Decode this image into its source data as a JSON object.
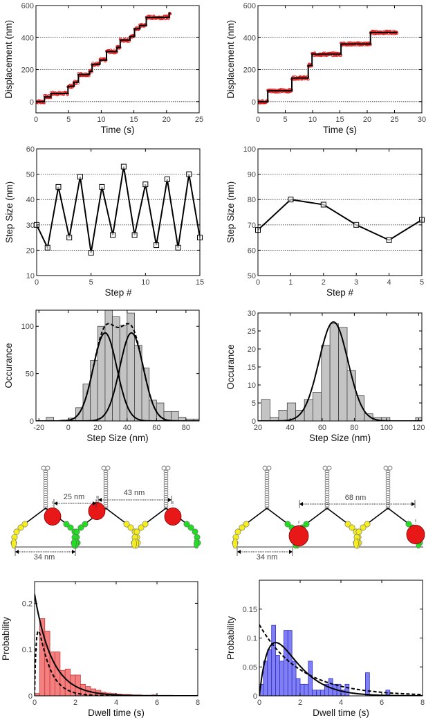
{
  "chart_data": [
    {
      "id": "A1",
      "type": "line",
      "xlabel": "Time (s)",
      "ylabel": "Displacement (nm)",
      "xlim": [
        0,
        25
      ],
      "ylim": [
        -70,
        600
      ],
      "xticks": [
        0,
        5,
        10,
        15,
        20,
        25
      ],
      "yticks": [
        0,
        200,
        400,
        600
      ],
      "grid": true,
      "series": [
        {
          "type": "step",
          "name": "trace",
          "color": "#e02020",
          "times": [
            0,
            1.3,
            2.3,
            4.9,
            5.8,
            6.5,
            8.2,
            8.6,
            9.8,
            10.8,
            12.4,
            12.9,
            14.4,
            15.1,
            15.9,
            16.9,
            20.4
          ],
          "levels": [
            0,
            30,
            51,
            96,
            121,
            170,
            189,
            234,
            260,
            313,
            339,
            385,
            407,
            455,
            476,
            526,
            551
          ],
          "t_end": 20.6
        }
      ]
    },
    {
      "id": "A2",
      "type": "line",
      "xlabel": "Time (s)",
      "ylabel": "Displacement (nm)",
      "xlim": [
        0,
        30
      ],
      "ylim": [
        -70,
        600
      ],
      "xticks": [
        0,
        5,
        10,
        15,
        20,
        25,
        30
      ],
      "yticks": [
        0,
        200,
        400,
        600
      ],
      "grid": true,
      "series": [
        {
          "type": "step",
          "name": "trace",
          "color": "#e02020",
          "times": [
            0,
            1.8,
            6.2,
            9.2,
            9.9,
            15.2,
            20.6
          ],
          "levels": [
            0,
            68,
            148,
            226,
            296,
            360,
            432
          ],
          "t_end": 25.5
        }
      ]
    },
    {
      "id": "B1",
      "type": "line",
      "xlabel": "Step #",
      "ylabel": "Step Size (nm)",
      "xlim": [
        0,
        15
      ],
      "ylim": [
        10,
        60
      ],
      "xticks": [
        0,
        5,
        10,
        15
      ],
      "yticks": [
        10,
        20,
        30,
        40,
        50,
        60
      ],
      "grid": true,
      "series": [
        {
          "type": "line_markers",
          "name": "step sizes",
          "x": [
            0,
            1,
            2,
            3,
            4,
            5,
            6,
            7,
            8,
            9,
            10,
            11,
            12,
            13,
            14,
            15
          ],
          "y": [
            30,
            21,
            45,
            25,
            49,
            19,
            45,
            26,
            53,
            26,
            46,
            22,
            48,
            21,
            50,
            25
          ]
        }
      ]
    },
    {
      "id": "B2",
      "type": "line",
      "xlabel": "Step #",
      "ylabel": "Step Size (nm)",
      "xlim": [
        0,
        5
      ],
      "ylim": [
        50,
        100
      ],
      "xticks": [
        0,
        1,
        2,
        3,
        4,
        5
      ],
      "yticks": [
        50,
        60,
        70,
        80,
        90,
        100
      ],
      "grid": true,
      "series": [
        {
          "type": "line_markers",
          "name": "step sizes",
          "x": [
            0,
            1,
            2,
            3,
            4,
            5
          ],
          "y": [
            68,
            80,
            78,
            70,
            64,
            72
          ]
        }
      ]
    },
    {
      "id": "C1",
      "type": "bar",
      "xlabel": "Step Size (nm)",
      "ylabel": "Occurance",
      "xlim": [
        -22,
        89
      ],
      "ylim": [
        0,
        117
      ],
      "xticks": [
        -20,
        0,
        20,
        40,
        60,
        80
      ],
      "yticks": [
        0,
        50,
        100
      ],
      "grid": false,
      "series": [
        {
          "type": "hist",
          "name": "histogram",
          "color": "#c4c4c4",
          "edge": "#444444",
          "bin_width": 5,
          "bin_starts": [
            -15,
            -5,
            0,
            5,
            10,
            15,
            20,
            25,
            30,
            35,
            40,
            45,
            50,
            55,
            60,
            65,
            70,
            75,
            80,
            85
          ],
          "counts": [
            4,
            1,
            3,
            14,
            39,
            64,
            100,
            118,
            110,
            101,
            114,
            80,
            56,
            22,
            19,
            10,
            10,
            4,
            2,
            2
          ]
        },
        {
          "type": "curve",
          "name": "gaussian 1",
          "model": "gaussian",
          "style": "solid",
          "amplitude": 93,
          "mean": 25,
          "sigma": 8
        },
        {
          "type": "curve",
          "name": "gaussian 2",
          "model": "gaussian",
          "style": "solid",
          "amplitude": 93,
          "mean": 43,
          "sigma": 8
        },
        {
          "type": "curve",
          "name": "sum",
          "model": "gaussian_sum",
          "style": "dashed",
          "components": [
            {
              "amplitude": 93,
              "mean": 25,
              "sigma": 8
            },
            {
              "amplitude": 93,
              "mean": 43,
              "sigma": 8
            }
          ],
          "cap": 111
        }
      ]
    },
    {
      "id": "C2",
      "type": "bar",
      "xlabel": "Step Size (nm)",
      "ylabel": "Occurance",
      "xlim": [
        20,
        122
      ],
      "ylim": [
        0,
        30
      ],
      "xticks": [
        20,
        40,
        60,
        80,
        100,
        120
      ],
      "yticks": [
        0,
        5,
        10,
        15,
        20,
        25,
        30
      ],
      "grid": false,
      "series": [
        {
          "type": "hist",
          "name": "histogram",
          "color": "#c4c4c4",
          "edge": "#444444",
          "bin_width": 5.33,
          "bin_starts": [
            22.2,
            27.5,
            32.9,
            38.2,
            43.5,
            48.9,
            54.2,
            59.5,
            64.8,
            70.2,
            75.5,
            80.8,
            86.2,
            91.5,
            96.8,
            102.1,
            107.5,
            112.8,
            118.1
          ],
          "counts": [
            6,
            1,
            3,
            5,
            3,
            6,
            8,
            21,
            27,
            26,
            14,
            7,
            2,
            1,
            1,
            0,
            0,
            0,
            1
          ]
        },
        {
          "type": "curve",
          "name": "gaussian fit",
          "model": "gaussian",
          "style": "solid",
          "amplitude": 27.5,
          "mean": 67,
          "sigma": 9
        }
      ]
    },
    {
      "id": "D1",
      "type": "bar",
      "xlabel": "Dwell time (s)",
      "ylabel": "Probability",
      "xlim": [
        0,
        8
      ],
      "ylim": [
        0,
        0.247
      ],
      "xticks": [
        0,
        2,
        4,
        6,
        8
      ],
      "yticks": [
        0,
        0.1,
        0.2
      ],
      "grid": false,
      "series": [
        {
          "type": "hist",
          "name": "dwell histogram",
          "color": "#f47f7f",
          "edge": "#c83a3a",
          "bin_width": 0.25,
          "bin_starts": [
            0,
            0.25,
            0.5,
            0.75,
            1.0,
            1.25,
            1.5,
            1.75,
            2.0,
            2.25,
            2.5,
            2.75,
            3.0,
            3.25,
            3.5,
            3.75,
            4.0,
            4.25,
            4.5,
            4.75,
            5.0,
            5.75
          ],
          "counts": [
            0.005,
            0.167,
            0.14,
            0.095,
            0.095,
            0.055,
            0.058,
            0.045,
            0.045,
            0.025,
            0.02,
            0.015,
            0.012,
            0.008,
            0.006,
            0.005,
            0.004,
            0.003,
            0.003,
            0.002,
            0.002,
            0.002
          ]
        },
        {
          "type": "curve",
          "name": "exponential fit",
          "model": "exponential",
          "style": "solid",
          "amplitude": 0.22,
          "tau": 0.85
        },
        {
          "type": "curve",
          "name": "two-step fit",
          "model": "biexp_rise",
          "style": "dashed",
          "amplitude": 0.23,
          "k1": 1.8,
          "k2": 12
        }
      ]
    },
    {
      "id": "D2",
      "type": "bar",
      "xlabel": "Dwell time (s)",
      "ylabel": "Probability",
      "xlim": [
        0,
        8
      ],
      "ylim": [
        0,
        0.2
      ],
      "xticks": [
        0,
        2,
        4,
        6,
        8
      ],
      "yticks": [
        0,
        0.05,
        0.1,
        0.15
      ],
      "grid": false,
      "series": [
        {
          "type": "hist",
          "name": "dwell histogram",
          "color": "#8080f4",
          "edge": "#3030c8",
          "bin_width": 0.2,
          "bin_starts": [
            0,
            0.2,
            0.4,
            0.6,
            0.8,
            1.0,
            1.2,
            1.4,
            1.6,
            1.8,
            2.0,
            2.2,
            2.4,
            2.6,
            2.8,
            3.0,
            3.2,
            3.4,
            3.6,
            3.8,
            4.0,
            4.2,
            5.2,
            6.2
          ],
          "counts": [
            0.02,
            0.06,
            0.08,
            0.122,
            0.07,
            0.06,
            0.113,
            0.113,
            0.06,
            0.03,
            0.02,
            0.02,
            0.06,
            0.01,
            0.01,
            0.01,
            0.02,
            0.03,
            0.02,
            0.02,
            0.01,
            0.02,
            0.04,
            0.01
          ]
        },
        {
          "type": "curve",
          "name": "gamma fit",
          "model": "gamma",
          "style": "solid",
          "amplitude": 0.313,
          "tau": 0.8
        },
        {
          "type": "curve",
          "name": "exponential fit",
          "model": "exponential",
          "style": "dashed",
          "amplitude": 0.123,
          "tau": 2.0
        }
      ]
    }
  ],
  "diagrams": {
    "left": {
      "labels": [
        "25 nm",
        "43 nm",
        "34 nm"
      ]
    },
    "right": {
      "labels": [
        "68 nm",
        "34 nm"
      ]
    }
  }
}
